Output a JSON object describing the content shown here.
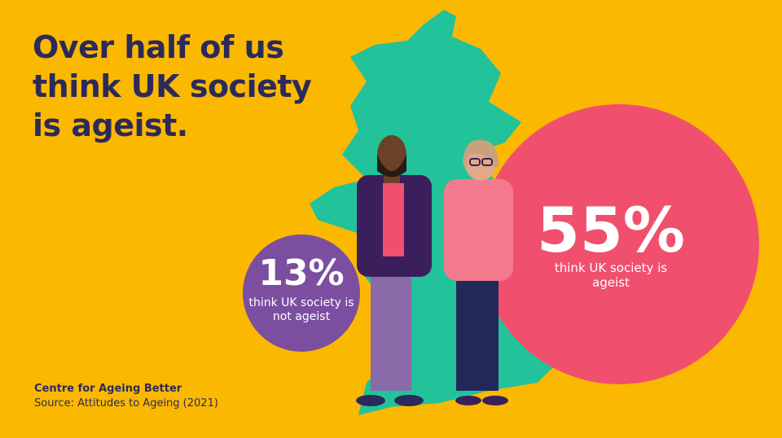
{
  "headline": "Over half of us think UK society is ageist.",
  "stats": [
    {
      "figure": "55%",
      "caption": "think UK society is ageist"
    },
    {
      "figure": "13%",
      "caption": "think UK society is not ageist"
    }
  ],
  "footer": {
    "organisation": "Centre for Ageing Better",
    "source": "Source: Attitudes to Ageing (2021)"
  }
}
